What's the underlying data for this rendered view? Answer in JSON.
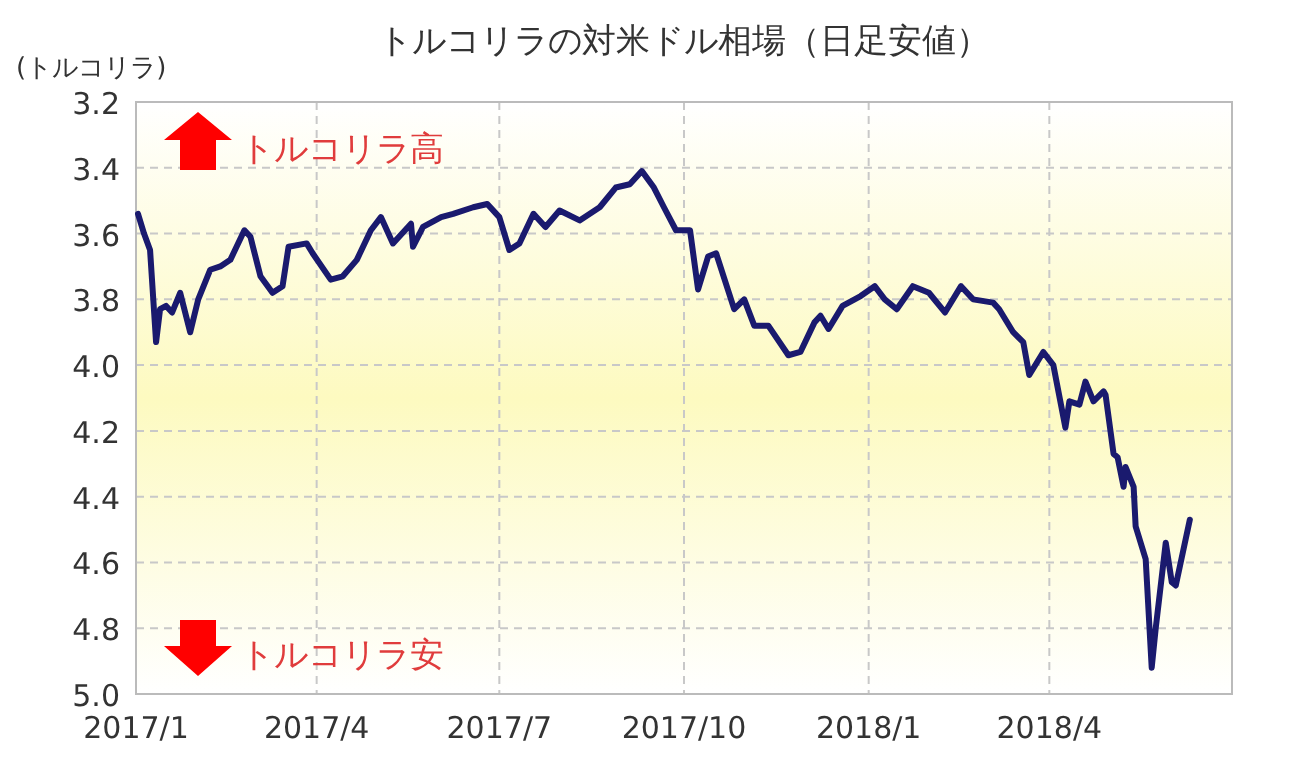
{
  "chart_data": {
    "type": "line",
    "title": "トルコリラの対米ドル相場（日足安値）",
    "ylabel": "(トルコリラ)",
    "annotations": [
      "トルコリラ高",
      "トルコリラ安"
    ],
    "x": [
      "2017-01-02",
      "2017-01-05",
      "2017-01-08",
      "2017-01-11",
      "2017-01-13",
      "2017-01-16",
      "2017-01-19",
      "2017-01-23",
      "2017-01-28",
      "2017-02-01",
      "2017-02-07",
      "2017-02-12",
      "2017-02-17",
      "2017-02-24",
      "2017-02-27",
      "2017-03-04",
      "2017-03-10",
      "2017-03-15",
      "2017-03-18",
      "2017-03-27",
      "2017-03-30",
      "2017-04-08",
      "2017-04-14",
      "2017-04-21",
      "2017-04-28",
      "2017-05-03",
      "2017-05-09",
      "2017-05-18",
      "2017-05-19",
      "2017-05-24",
      "2017-06-02",
      "2017-06-08",
      "2017-06-18",
      "2017-06-25",
      "2017-07-01",
      "2017-07-06",
      "2017-07-11",
      "2017-07-18",
      "2017-07-24",
      "2017-07-31",
      "2017-08-10",
      "2017-08-20",
      "2017-08-28",
      "2017-09-04",
      "2017-09-10",
      "2017-09-16",
      "2017-09-21",
      "2017-09-27",
      "2017-10-04",
      "2017-10-08",
      "2017-10-13",
      "2017-10-17",
      "2017-10-26",
      "2017-10-31",
      "2017-11-05",
      "2017-11-12",
      "2017-11-22",
      "2017-11-28",
      "2017-12-05",
      "2017-12-08",
      "2017-12-12",
      "2017-12-19",
      "2017-12-28",
      "2018-01-04",
      "2018-01-09",
      "2018-01-15",
      "2018-01-23",
      "2018-01-31",
      "2018-02-08",
      "2018-02-16",
      "2018-02-22",
      "2018-03-04",
      "2018-03-07",
      "2018-03-14",
      "2018-03-19",
      "2018-03-22",
      "2018-03-29",
      "2018-04-03",
      "2018-04-09",
      "2018-04-11",
      "2018-04-16",
      "2018-04-19",
      "2018-04-23",
      "2018-04-28",
      "2018-04-29",
      "2018-05-03",
      "2018-05-05",
      "2018-05-08",
      "2018-05-09",
      "2018-05-13",
      "2018-05-14",
      "2018-05-19",
      "2018-05-22",
      "2018-05-24",
      "2018-05-29",
      "2018-06-01",
      "2018-06-03",
      "2018-06-10"
    ],
    "series": [
      {
        "color": "#1a1a6e",
        "values": [
          3.54,
          3.6,
          3.65,
          3.93,
          3.83,
          3.82,
          3.84,
          3.78,
          3.9,
          3.8,
          3.71,
          3.7,
          3.68,
          3.59,
          3.61,
          3.73,
          3.78,
          3.76,
          3.64,
          3.63,
          3.66,
          3.74,
          3.73,
          3.68,
          3.59,
          3.55,
          3.63,
          3.57,
          3.64,
          3.58,
          3.55,
          3.54,
          3.52,
          3.51,
          3.55,
          3.65,
          3.63,
          3.54,
          3.58,
          3.53,
          3.56,
          3.52,
          3.46,
          3.45,
          3.41,
          3.46,
          3.52,
          3.59,
          3.59,
          3.77,
          3.67,
          3.66,
          3.83,
          3.8,
          3.88,
          3.88,
          3.97,
          3.96,
          3.87,
          3.85,
          3.89,
          3.82,
          3.79,
          3.76,
          3.8,
          3.83,
          3.76,
          3.78,
          3.84,
          3.76,
          3.8,
          3.81,
          3.83,
          3.9,
          3.93,
          4.03,
          3.96,
          4.0,
          4.19,
          4.11,
          4.12,
          4.05,
          4.11,
          4.08,
          4.09,
          4.27,
          4.28,
          4.37,
          4.31,
          4.37,
          4.49,
          4.59,
          4.92,
          4.8,
          4.54,
          4.66,
          4.67,
          4.47
        ]
      }
    ],
    "xlim": [
      "2017-01-01",
      "2018-07-01"
    ],
    "xticks": [
      {
        "value": "2017-01-01",
        "label": "2017/1"
      },
      {
        "value": "2017-04-01",
        "label": "2017/4"
      },
      {
        "value": "2017-07-01",
        "label": "2017/7"
      },
      {
        "value": "2017-10-01",
        "label": "2017/10"
      },
      {
        "value": "2018-01-01",
        "label": "2018/1"
      },
      {
        "value": "2018-04-01",
        "label": "2018/4"
      }
    ],
    "ylim": [
      5.0,
      3.2
    ],
    "yticks": [
      {
        "value": 3.2,
        "label": "3.2"
      },
      {
        "value": 3.4,
        "label": "3.4"
      },
      {
        "value": 3.6,
        "label": "3.6"
      },
      {
        "value": 3.8,
        "label": "3.8"
      },
      {
        "value": 4.0,
        "label": "4.0"
      },
      {
        "value": 4.2,
        "label": "4.2"
      },
      {
        "value": 4.4,
        "label": "4.4"
      },
      {
        "value": 4.6,
        "label": "4.6"
      },
      {
        "value": 4.8,
        "label": "4.8"
      },
      {
        "value": 5.0,
        "label": "5.0"
      }
    ],
    "grid": true,
    "marker": "none",
    "line_style": "solid"
  }
}
